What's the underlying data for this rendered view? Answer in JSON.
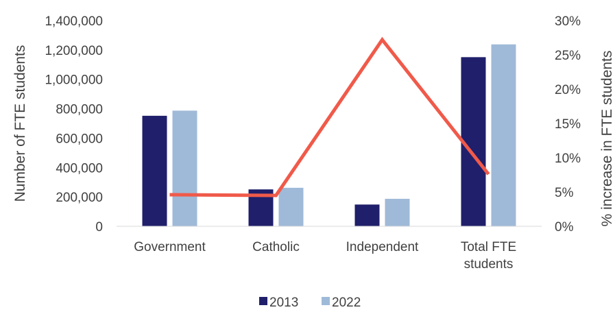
{
  "chart_data": {
    "type": "bar",
    "categories": [
      "Government",
      "Catholic",
      "Independent",
      "Total FTE students"
    ],
    "category_lines": [
      [
        "Government"
      ],
      [
        "Catholic"
      ],
      [
        "Independent"
      ],
      [
        "Total FTE",
        "students"
      ]
    ],
    "series": [
      {
        "name": "2013",
        "axis": "left",
        "type": "bar",
        "values": [
          752000,
          251000,
          148000,
          1151000
        ],
        "color": "#1f1f6b"
      },
      {
        "name": "2022",
        "axis": "left",
        "type": "bar",
        "values": [
          787000,
          262000,
          187000,
          1238000
        ],
        "color": "#9fbad8"
      },
      {
        "axis": "right",
        "type": "line",
        "values": [
          4.6,
          4.5,
          27.2,
          7.6
        ],
        "color": "#f05a4a"
      }
    ],
    "ylabel": "Number of FTE students",
    "y2label": "% increase in FTE students",
    "ylim": [
      0,
      1400000
    ],
    "y2lim": [
      0,
      30
    ],
    "yticks": [
      "0",
      "200,000",
      "400,000",
      "600,000",
      "800,000",
      "1,000,000",
      "1,200,000",
      "1,400,000"
    ],
    "y2ticks": [
      "0%",
      "5%",
      "10%",
      "15%",
      "20%",
      "25%",
      "30%"
    ],
    "legend_position": "bottom",
    "grid": false
  }
}
